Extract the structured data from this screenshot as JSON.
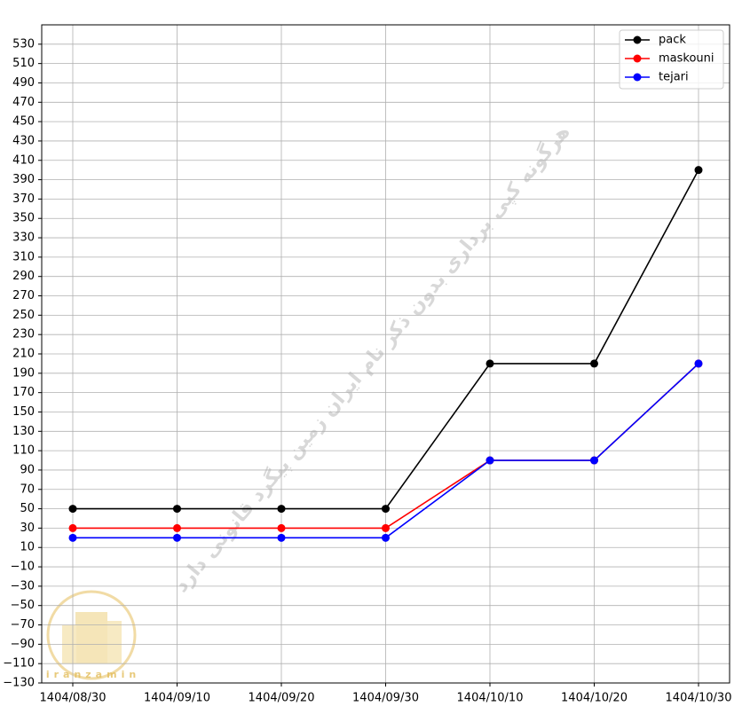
{
  "chart_data": {
    "type": "line",
    "categories": [
      "1404/08/30",
      "1404/09/10",
      "1404/09/20",
      "1404/09/30",
      "1404/10/10",
      "1404/10/20",
      "1404/10/30"
    ],
    "series": [
      {
        "name": "pack",
        "color": "#000000",
        "values": [
          50,
          50,
          50,
          50,
          200,
          200,
          400
        ]
      },
      {
        "name": "maskouni",
        "color": "#ff0000",
        "values": [
          30,
          30,
          30,
          30,
          100,
          100,
          200
        ]
      },
      {
        "name": "tejari",
        "color": "#0000ff",
        "values": [
          20,
          20,
          20,
          20,
          100,
          100,
          200
        ]
      }
    ],
    "ylim": [
      -130,
      550
    ],
    "yticks": [
      {
        "value": -130,
        "label": "−130"
      },
      {
        "value": -110,
        "label": "−110"
      },
      {
        "value": -90,
        "label": "−90"
      },
      {
        "value": -70,
        "label": "−70"
      },
      {
        "value": -50,
        "label": "−50"
      },
      {
        "value": -30,
        "label": "−30"
      },
      {
        "value": -10,
        "label": "−10"
      },
      10,
      30,
      50,
      70,
      90,
      110,
      130,
      150,
      170,
      190,
      210,
      230,
      250,
      270,
      290,
      310,
      330,
      350,
      370,
      390,
      410,
      430,
      450,
      470,
      490,
      510,
      530
    ],
    "grid": true,
    "legend": "upper-right",
    "watermark": "هرگونه کپی برداری بدون ذکر نام ایران زمین پیگرد قانونی دارد",
    "logo_text": "iranzamin"
  }
}
